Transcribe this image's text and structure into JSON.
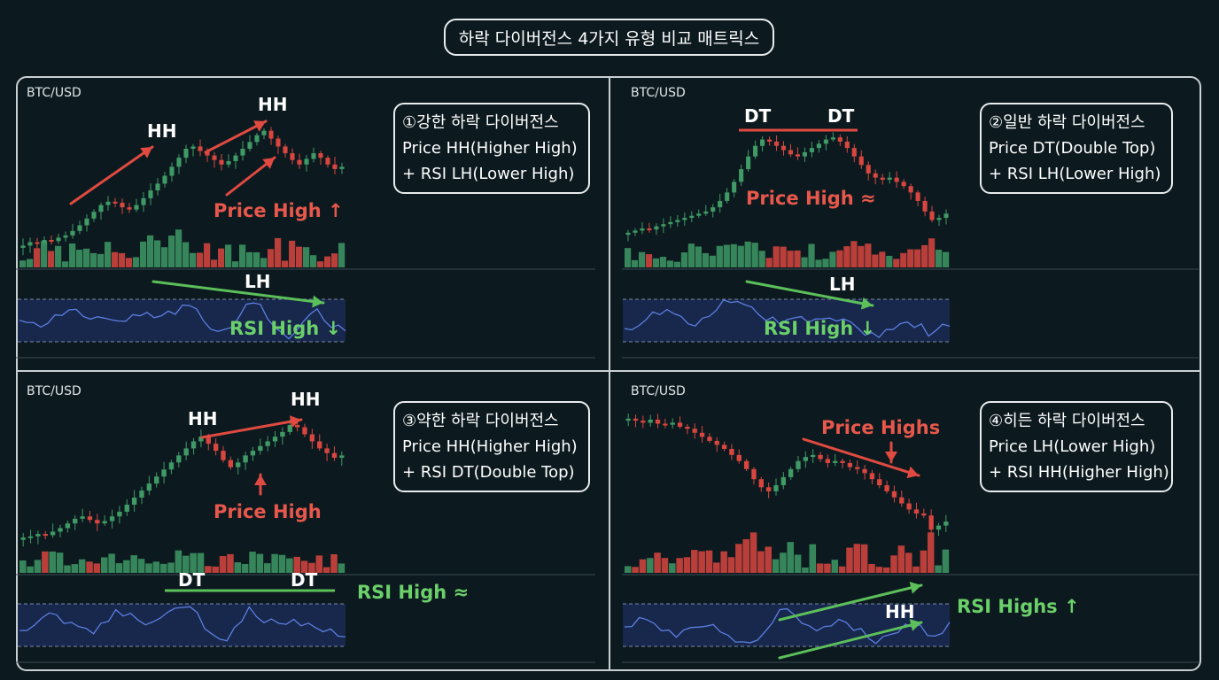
{
  "title": "하락 다이버전스 4가지 유형 비교 매트릭스",
  "colors": {
    "background": "#0c1a1f",
    "bull": "#3f9a66",
    "bear": "#d9463f",
    "rsi_line": "#5b7fe0",
    "rsi_band": "#1c2c5c",
    "arrow_red": "#e04a40",
    "arrow_green": "#5cc05a"
  },
  "chart_data": [
    {
      "type": "candlestick",
      "pair": "BTC/USD",
      "box": [
        "①강한 하락 다이버전스",
        "Price HH(Higher High)",
        "+ RSI LH(Lower High)"
      ],
      "labels": {
        "hh1": "HH",
        "hh2": "HH",
        "price": "Price High ↑",
        "rsi_mark": "LH",
        "rsi": "RSI High ↓"
      },
      "price": [
        98,
        101,
        100,
        103,
        102,
        105,
        107,
        111,
        116,
        122,
        128,
        134,
        137,
        136,
        132,
        130,
        134,
        140,
        147,
        153,
        160,
        168,
        176,
        184,
        186,
        182,
        178,
        174,
        170,
        173,
        178,
        184,
        190,
        196,
        200,
        193,
        186,
        180,
        174,
        170,
        175,
        180,
        176,
        170,
        166,
        168
      ]
    },
    {
      "type": "candlestick",
      "pair": "BTC/USD",
      "box": [
        "②일반 하락 다이버전스",
        "Price DT(Double Top)",
        "+ RSI LH(Lower High)"
      ],
      "labels": {
        "dt1": "DT",
        "dt2": "DT",
        "price": "Price High ≈",
        "rsi_mark": "LH",
        "rsi": "RSI High ↓"
      },
      "price": [
        98,
        100,
        102,
        101,
        104,
        106,
        108,
        110,
        112,
        114,
        116,
        118,
        122,
        128,
        136,
        146,
        158,
        170,
        180,
        186,
        184,
        180,
        176,
        172,
        170,
        174,
        178,
        182,
        186,
        188,
        184,
        178,
        170,
        162,
        154,
        150,
        148,
        150,
        146,
        142,
        136,
        128,
        118,
        110,
        112,
        116
      ]
    },
    {
      "type": "candlestick",
      "pair": "BTC/USD",
      "box": [
        "③약한 하락 다이버전스",
        "Price HH(Higher High)",
        "+ RSI DT(Double Top)"
      ],
      "labels": {
        "hh1": "HH",
        "hh2": "HH",
        "price": "Price High",
        "rsi_mark1": "DT",
        "rsi_mark2": "DT",
        "rsi": "RSI High ≈"
      },
      "price": [
        100,
        101,
        103,
        102,
        105,
        108,
        112,
        116,
        118,
        115,
        112,
        114,
        118,
        122,
        128,
        134,
        140,
        146,
        152,
        158,
        164,
        170,
        176,
        182,
        186,
        180,
        174,
        166,
        160,
        164,
        170,
        174,
        178,
        182,
        186,
        190,
        196,
        194,
        188,
        182,
        176,
        172,
        168,
        170
      ]
    },
    {
      "type": "candlestick",
      "pair": "BTC/USD",
      "box": [
        "④히든 하락 다이버전스",
        "Price LH(Lower High)",
        "+ RSI HH(Higher High)"
      ],
      "labels": {
        "price": "Price Highs",
        "rsi_mark": "HH",
        "rsi": "RSI Highs ↑"
      },
      "price": [
        190,
        188,
        186,
        189,
        185,
        184,
        186,
        182,
        180,
        176,
        172,
        168,
        164,
        160,
        154,
        148,
        140,
        130,
        122,
        118,
        124,
        132,
        140,
        148,
        152,
        154,
        150,
        146,
        148,
        146,
        142,
        140,
        136,
        130,
        124,
        118,
        112,
        106,
        100,
        96,
        94,
        80,
        84,
        88
      ]
    }
  ]
}
